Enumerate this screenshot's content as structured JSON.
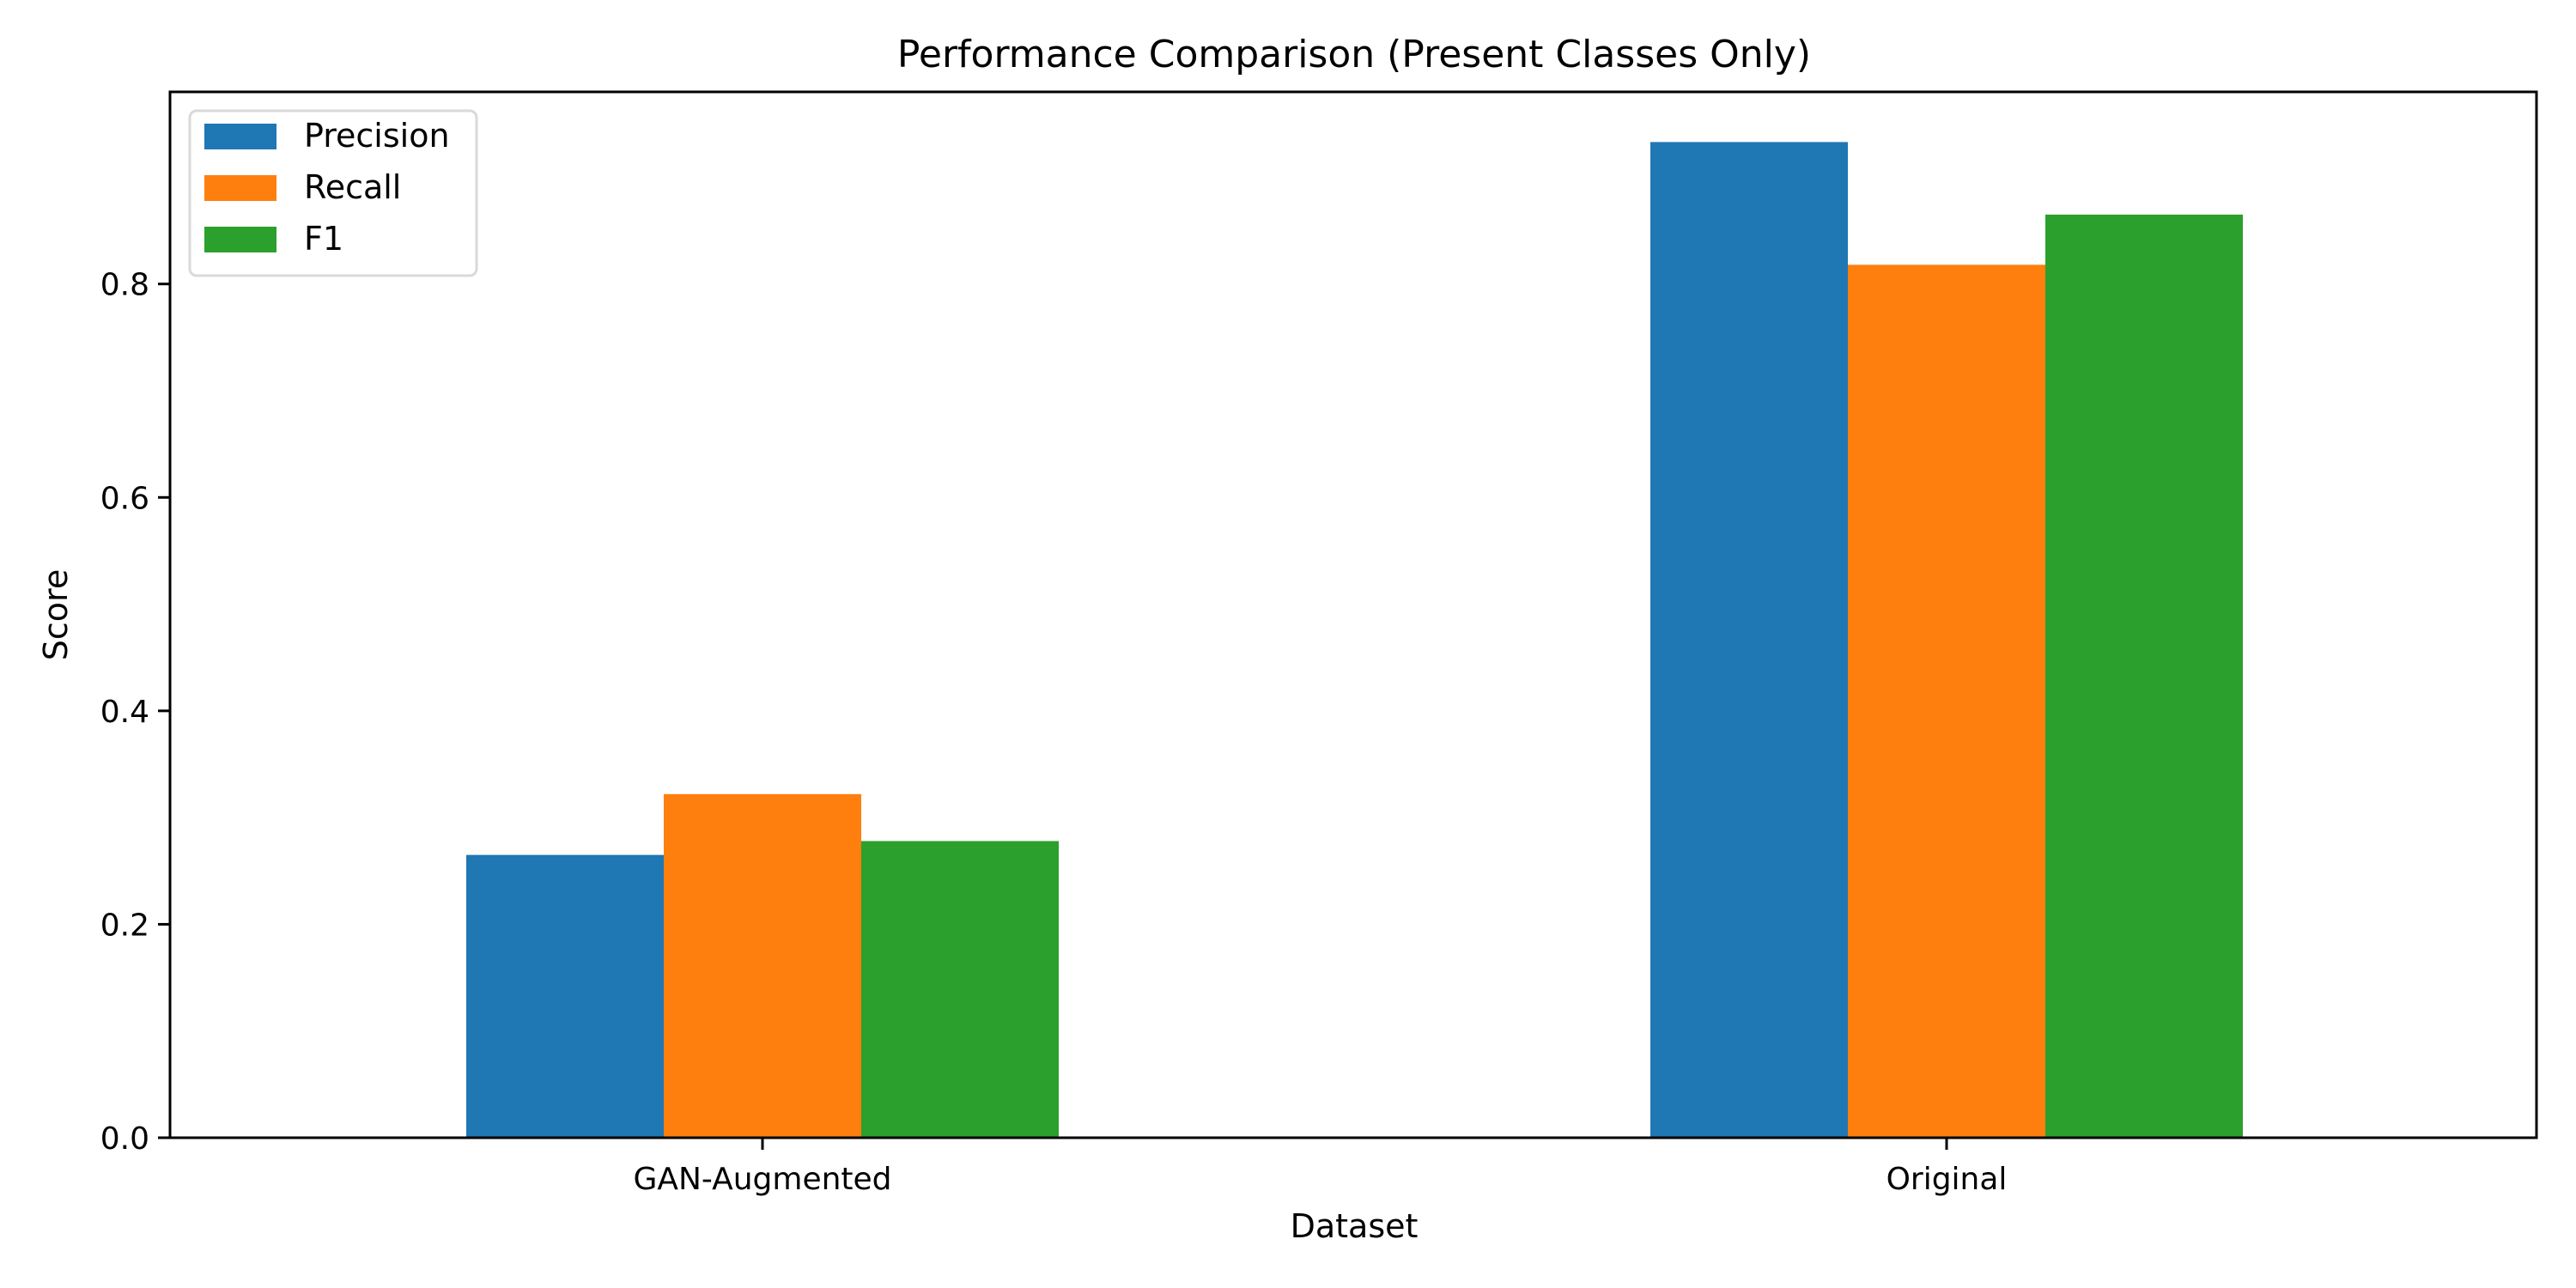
{
  "chart_data": {
    "type": "bar",
    "title": "Performance Comparison (Present Classes Only)",
    "xlabel": "Dataset",
    "ylabel": "Score",
    "categories": [
      "GAN-Augmented",
      "Original"
    ],
    "series": [
      {
        "name": "Precision",
        "color": "#1f77b4",
        "values": [
          0.265,
          0.933
        ]
      },
      {
        "name": "Recall",
        "color": "#ff7f0e",
        "values": [
          0.322,
          0.818
        ]
      },
      {
        "name": "F1",
        "color": "#2ca02c",
        "values": [
          0.278,
          0.865
        ]
      }
    ],
    "ylim": [
      0,
      0.98
    ],
    "yticks": [
      0.0,
      0.2,
      0.4,
      0.6,
      0.8
    ],
    "ytick_labels": [
      "0.0",
      "0.2",
      "0.4",
      "0.6",
      "0.8"
    ],
    "grid": false,
    "legend_position": "top-left"
  }
}
